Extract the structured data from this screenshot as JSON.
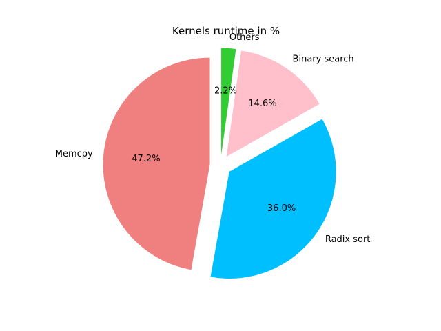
{
  "chart_data": {
    "type": "pie",
    "title": "Kernels runtime in %",
    "start_angle_deg": 90,
    "direction": "counterclockwise",
    "slices": [
      {
        "name": "Memcpy",
        "value": 47.2,
        "label": "47.2%",
        "color": "#f08080",
        "exploded": true
      },
      {
        "name": "Radix sort",
        "value": 36.0,
        "label": "36.0%",
        "color": "#00bfff",
        "exploded": true
      },
      {
        "name": "Binary search",
        "value": 14.6,
        "label": "14.6%",
        "color": "#ffc0cb",
        "exploded": true
      },
      {
        "name": "Others",
        "value": 2.2,
        "label": "2.2%",
        "color": "#32cd32",
        "exploded": true
      }
    ]
  }
}
